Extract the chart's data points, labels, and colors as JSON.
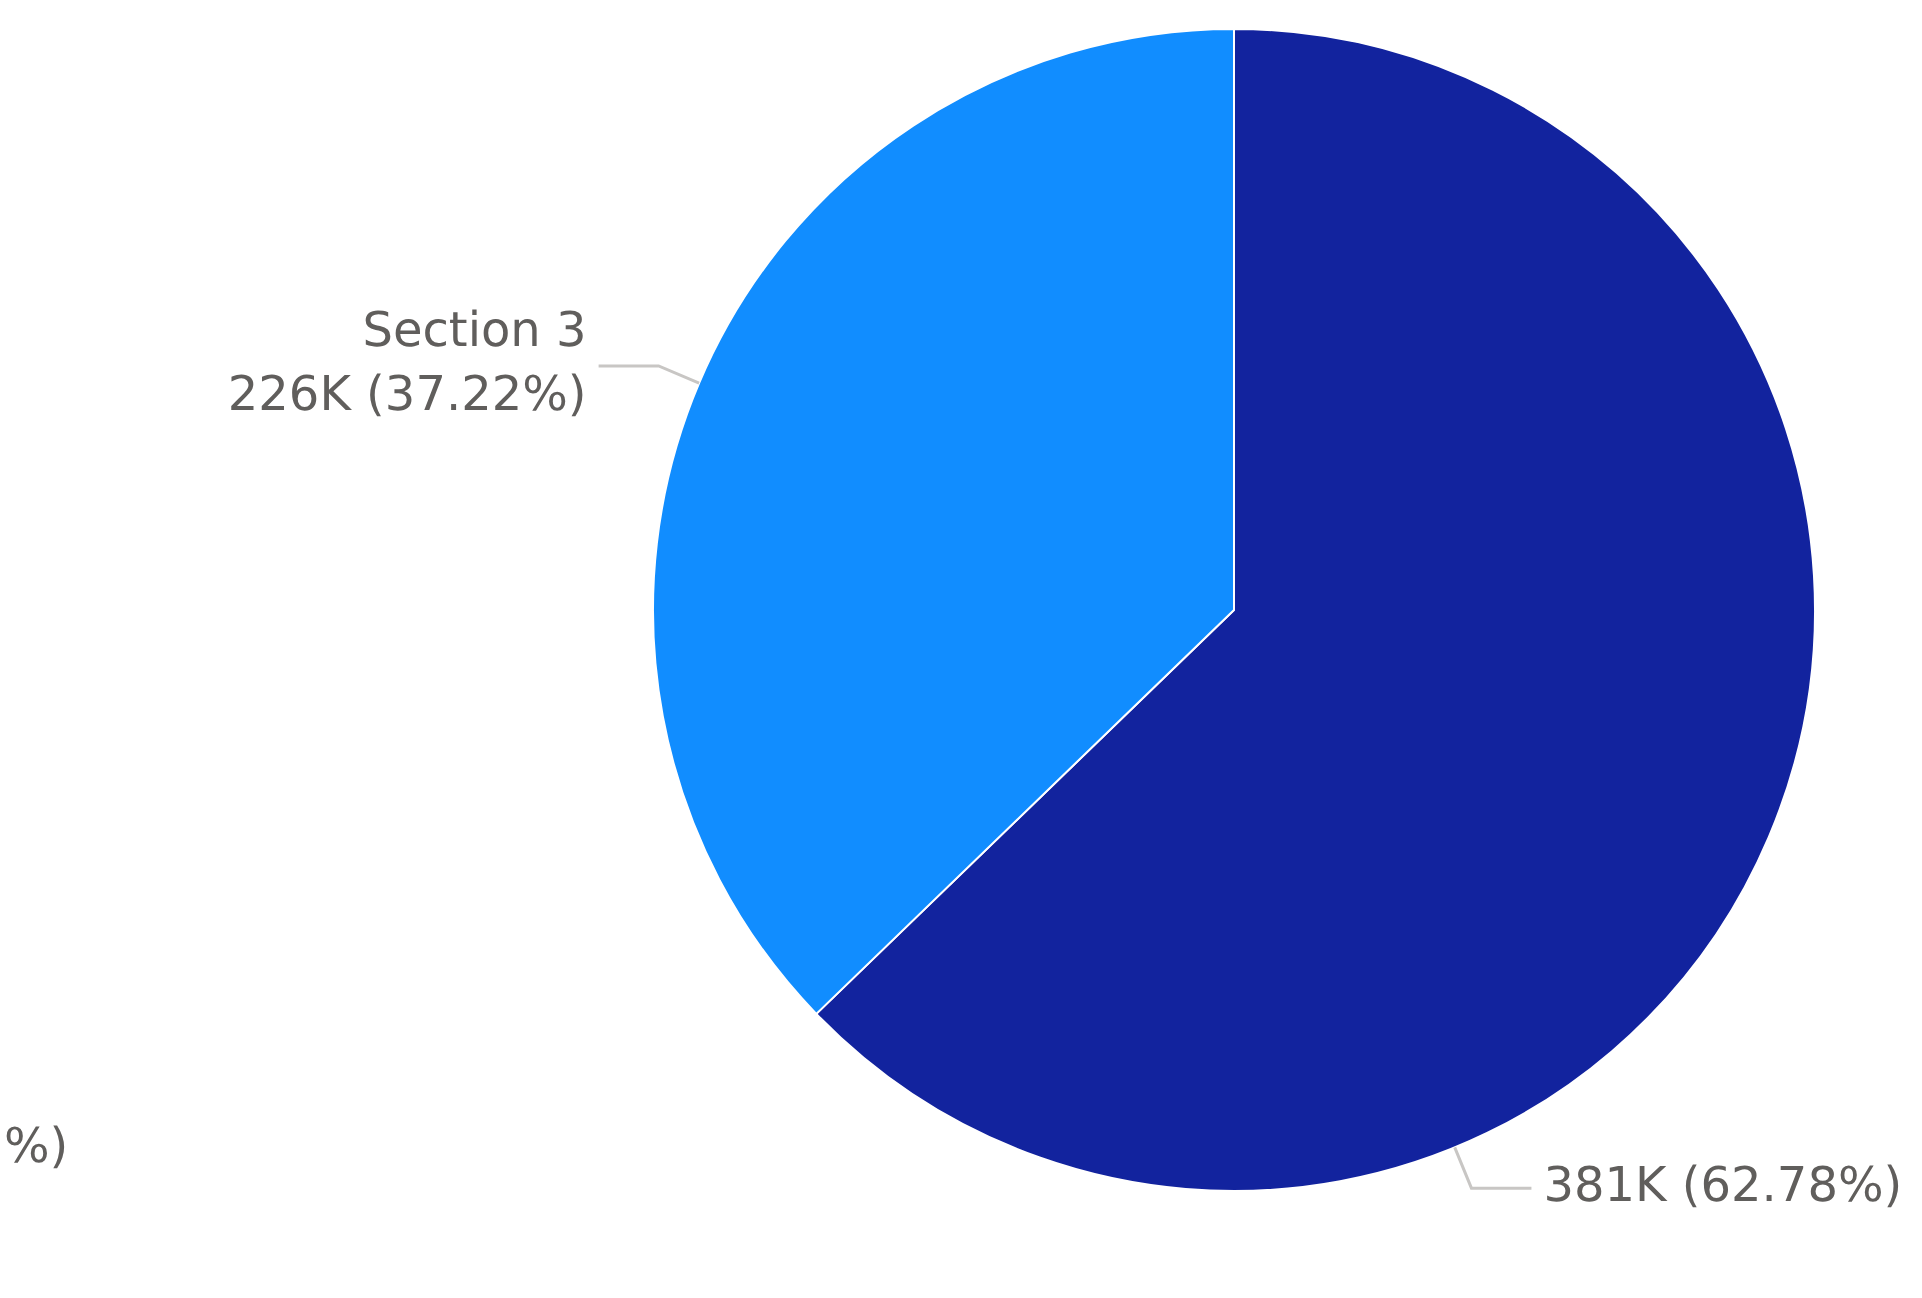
{
  "chart_data": {
    "type": "pie",
    "categories": [
      null,
      "Section 3"
    ],
    "values": [
      381000,
      226000
    ],
    "colors": [
      "#12239e",
      "#118dff"
    ],
    "value_labels": [
      "381K (62.78%)",
      "226K (37.22%)"
    ],
    "annotations": [
      "%)"
    ],
    "legend": false
  }
}
